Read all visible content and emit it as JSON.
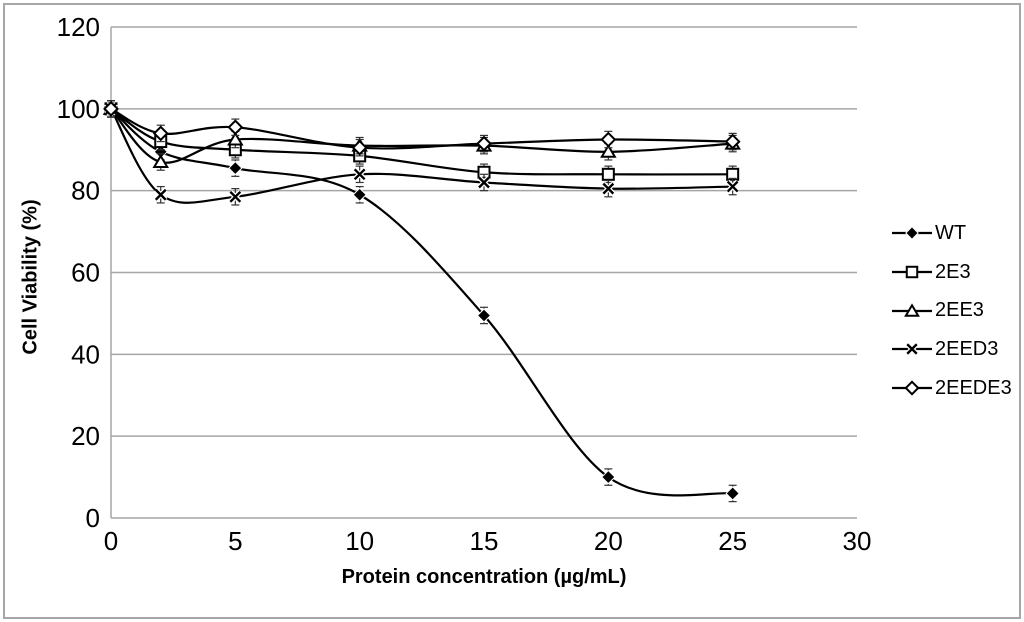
{
  "chart_data": {
    "type": "line",
    "title": "",
    "xlabel": "Protein concentration (µg/mL)",
    "ylabel": "Cell Viability (%)",
    "xlim": [
      0,
      30
    ],
    "ylim": [
      0,
      120
    ],
    "xticks": [
      0,
      5,
      10,
      15,
      20,
      25,
      30
    ],
    "yticks": [
      0,
      20,
      40,
      60,
      80,
      100,
      120
    ],
    "grid": "horizontal",
    "legend_position": "right",
    "x": [
      0,
      2,
      5,
      10,
      15,
      20,
      25
    ],
    "series": [
      {
        "name": "WT",
        "marker": "diamond-filled",
        "values": [
          100,
          89.5,
          85.5,
          79,
          49.5,
          10,
          6
        ]
      },
      {
        "name": "2E3",
        "marker": "square-open",
        "values": [
          100,
          92,
          90,
          88.5,
          84.5,
          84,
          84
        ]
      },
      {
        "name": "2EE3",
        "marker": "triangle-open",
        "values": [
          100,
          87,
          92.5,
          91,
          91,
          89.5,
          91.5
        ]
      },
      {
        "name": "2EED3",
        "marker": "x",
        "values": [
          100,
          79,
          78.5,
          84,
          82,
          80.5,
          81
        ]
      },
      {
        "name": "2EEDE3",
        "marker": "diamond-open",
        "values": [
          100,
          94,
          95.5,
          90.5,
          91.5,
          92.5,
          92
        ]
      }
    ],
    "error_bar": 2.0,
    "colors": {
      "line": "#000000",
      "grid": "#a6a6a6",
      "frame": "#a6a6a6",
      "background": "#ffffff",
      "text": "#000000"
    }
  }
}
